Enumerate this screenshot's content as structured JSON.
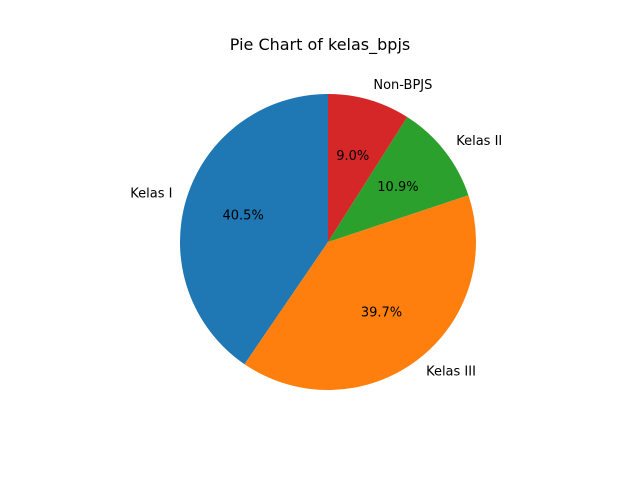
{
  "chart_data": {
    "type": "pie",
    "title": "Pie Chart of kelas_bpjs",
    "categories": [
      "Kelas I",
      "Kelas III",
      "Kelas II",
      "Non-BPJS"
    ],
    "values": [
      40.5,
      39.7,
      10.9,
      9.0
    ],
    "percent_labels": [
      "40.5%",
      "39.7%",
      "10.9%",
      "9.0%"
    ],
    "colors": [
      "#1f77b4",
      "#ff7f0e",
      "#2ca02c",
      "#d62728"
    ],
    "start_angle_deg": 90,
    "direction": "counterclockwise",
    "legend": "none"
  }
}
